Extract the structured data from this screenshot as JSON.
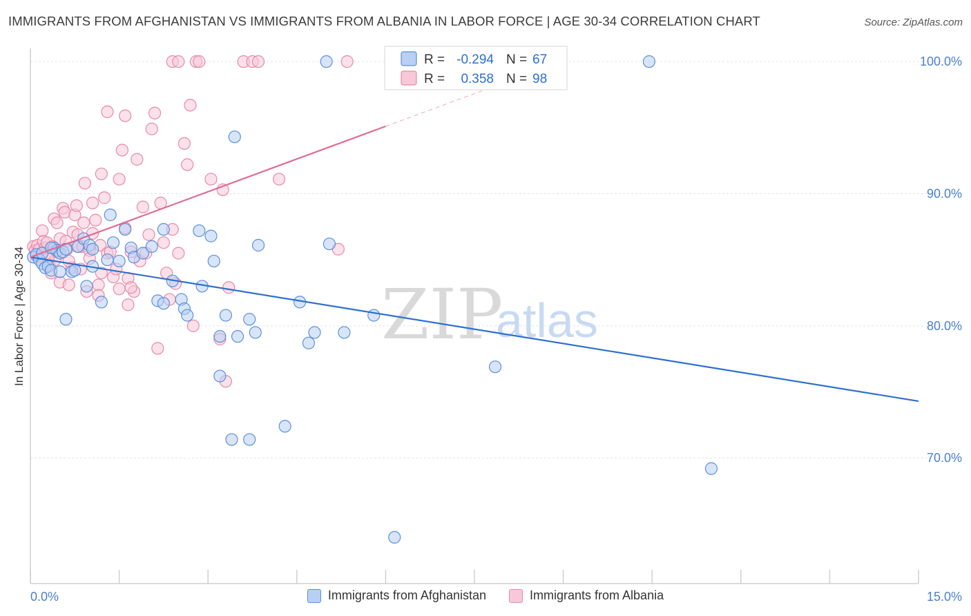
{
  "header": {
    "title": "IMMIGRANTS FROM AFGHANISTAN VS IMMIGRANTS FROM ALBANIA IN LABOR FORCE | AGE 30-34 CORRELATION CHART",
    "source": "Source: ZipAtlas.com"
  },
  "watermark": {
    "zip": "ZIP",
    "atlas": "atlas"
  },
  "legend": {
    "r_label": "R =",
    "n_label": "N =",
    "afghanistan": {
      "r": "-0.294",
      "n": "67"
    },
    "albania": {
      "r": "0.358",
      "n": "98"
    }
  },
  "bottom_legend": {
    "afghanistan": "Immigrants from Afghanistan",
    "albania": "Immigrants from Albania"
  },
  "colors": {
    "blue_stroke": "#5b8fd8",
    "blue_fill": "#b8d0f4",
    "blue_line": "#2c6fd0",
    "pink_stroke": "#e58aa8",
    "pink_fill": "#f8c8d8",
    "pink_line": "#e06a94"
  },
  "chart_data": {
    "type": "scatter",
    "title": "IMMIGRANTS FROM AFGHANISTAN VS IMMIGRANTS FROM ALBANIA IN LABOR FORCE | AGE 30-34 CORRELATION CHART",
    "xlabel": "",
    "ylabel": "In Labor Force | Age 30-34",
    "xlim": [
      0,
      15
    ],
    "ylim": [
      60.5,
      101
    ],
    "x_tick_labels": [
      "0.0%",
      "15.0%"
    ],
    "y_ticks": [
      70,
      80,
      90,
      100
    ],
    "y_tick_labels": [
      "70.0%",
      "80.0%",
      "90.0%",
      "100.0%"
    ],
    "grid": true,
    "series": [
      {
        "name": "Immigrants from Afghanistan",
        "color": "blue",
        "points": [
          [
            0.05,
            85.2
          ],
          [
            0.1,
            85.4
          ],
          [
            0.15,
            85.0
          ],
          [
            0.2,
            84.7
          ],
          [
            0.25,
            84.4
          ],
          [
            0.3,
            84.5
          ],
          [
            0.35,
            84.2
          ],
          [
            0.4,
            85.9
          ],
          [
            0.45,
            85.7
          ],
          [
            0.5,
            85.5
          ],
          [
            0.55,
            85.6
          ],
          [
            0.7,
            84.1
          ],
          [
            0.75,
            84.2
          ],
          [
            0.8,
            86.0
          ],
          [
            0.9,
            86.6
          ],
          [
            0.95,
            83.0
          ],
          [
            1.0,
            86.1
          ],
          [
            1.05,
            84.5
          ],
          [
            1.2,
            81.8
          ],
          [
            1.3,
            85.0
          ],
          [
            1.35,
            88.4
          ],
          [
            1.4,
            86.3
          ],
          [
            1.5,
            84.9
          ],
          [
            1.6,
            87.3
          ],
          [
            1.7,
            85.9
          ],
          [
            1.75,
            85.2
          ],
          [
            1.9,
            85.5
          ],
          [
            2.05,
            86.0
          ],
          [
            2.15,
            81.9
          ],
          [
            2.25,
            87.3
          ],
          [
            2.25,
            81.7
          ],
          [
            2.4,
            83.4
          ],
          [
            2.55,
            82.0
          ],
          [
            2.6,
            81.3
          ],
          [
            2.65,
            80.8
          ],
          [
            2.85,
            87.2
          ],
          [
            2.9,
            83.0
          ],
          [
            3.05,
            86.8
          ],
          [
            3.1,
            84.9
          ],
          [
            3.2,
            79.2
          ],
          [
            3.2,
            76.2
          ],
          [
            3.3,
            80.8
          ],
          [
            3.45,
            94.3
          ],
          [
            3.5,
            79.2
          ],
          [
            3.7,
            80.5
          ],
          [
            3.8,
            79.5
          ],
          [
            3.85,
            86.1
          ],
          [
            4.3,
            72.4
          ],
          [
            4.55,
            81.8
          ],
          [
            4.7,
            78.7
          ],
          [
            4.8,
            79.5
          ],
          [
            5.05,
            86.2
          ],
          [
            5.3,
            79.5
          ],
          [
            5.8,
            80.8
          ],
          [
            6.15,
            64.0
          ],
          [
            7.85,
            76.9
          ],
          [
            10.45,
            100.0
          ],
          [
            11.5,
            69.2
          ],
          [
            0.6,
            80.5
          ],
          [
            3.4,
            71.4
          ],
          [
            3.7,
            71.4
          ],
          [
            0.5,
            84.1
          ],
          [
            1.05,
            85.8
          ],
          [
            0.2,
            85.5
          ],
          [
            0.35,
            85.9
          ],
          [
            0.6,
            85.8
          ],
          [
            5.0,
            100.0
          ]
        ]
      },
      {
        "name": "Immigrants from Albania",
        "color": "pink",
        "points": [
          [
            0.05,
            86.0
          ],
          [
            0.08,
            85.7
          ],
          [
            0.1,
            85.3
          ],
          [
            0.12,
            86.1
          ],
          [
            0.15,
            85.8
          ],
          [
            0.18,
            85.2
          ],
          [
            0.2,
            87.2
          ],
          [
            0.22,
            86.4
          ],
          [
            0.25,
            85.9
          ],
          [
            0.28,
            86.3
          ],
          [
            0.3,
            85.5
          ],
          [
            0.32,
            84.6
          ],
          [
            0.35,
            84.0
          ],
          [
            0.38,
            86.0
          ],
          [
            0.4,
            88.1
          ],
          [
            0.42,
            85.0
          ],
          [
            0.45,
            87.8
          ],
          [
            0.5,
            83.3
          ],
          [
            0.5,
            86.6
          ],
          [
            0.55,
            88.9
          ],
          [
            0.58,
            88.6
          ],
          [
            0.6,
            86.4
          ],
          [
            0.62,
            85.8
          ],
          [
            0.65,
            83.1
          ],
          [
            0.7,
            84.4
          ],
          [
            0.72,
            87.1
          ],
          [
            0.75,
            88.4
          ],
          [
            0.78,
            89.1
          ],
          [
            0.8,
            86.9
          ],
          [
            0.82,
            86.0
          ],
          [
            0.85,
            84.3
          ],
          [
            0.88,
            86.0
          ],
          [
            0.9,
            87.8
          ],
          [
            0.92,
            90.8
          ],
          [
            0.95,
            82.6
          ],
          [
            1.0,
            85.7
          ],
          [
            1.05,
            87.0
          ],
          [
            1.05,
            89.3
          ],
          [
            1.1,
            88.0
          ],
          [
            1.15,
            83.1
          ],
          [
            1.18,
            86.1
          ],
          [
            1.2,
            91.5
          ],
          [
            1.2,
            84.0
          ],
          [
            1.25,
            89.7
          ],
          [
            1.3,
            96.2
          ],
          [
            1.3,
            85.5
          ],
          [
            1.35,
            85.6
          ],
          [
            1.4,
            83.7
          ],
          [
            1.45,
            84.3
          ],
          [
            1.5,
            91.1
          ],
          [
            1.5,
            82.8
          ],
          [
            1.55,
            93.3
          ],
          [
            1.6,
            87.4
          ],
          [
            1.65,
            83.6
          ],
          [
            1.65,
            81.6
          ],
          [
            1.7,
            85.6
          ],
          [
            1.75,
            82.6
          ],
          [
            1.8,
            92.6
          ],
          [
            1.85,
            84.9
          ],
          [
            1.9,
            89.0
          ],
          [
            1.95,
            85.5
          ],
          [
            2.0,
            86.9
          ],
          [
            2.05,
            94.9
          ],
          [
            2.1,
            96.1
          ],
          [
            2.15,
            78.3
          ],
          [
            2.2,
            89.3
          ],
          [
            2.25,
            86.3
          ],
          [
            2.3,
            84.0
          ],
          [
            2.35,
            82.0
          ],
          [
            2.4,
            87.3
          ],
          [
            2.45,
            83.2
          ],
          [
            2.5,
            85.5
          ],
          [
            2.6,
            93.8
          ],
          [
            2.65,
            92.2
          ],
          [
            2.7,
            96.7
          ],
          [
            2.75,
            80.0
          ],
          [
            2.8,
            100.0
          ],
          [
            2.85,
            100.0
          ],
          [
            3.05,
            91.1
          ],
          [
            3.2,
            79.0
          ],
          [
            3.25,
            90.3
          ],
          [
            3.3,
            75.8
          ],
          [
            3.35,
            82.9
          ],
          [
            3.6,
            100.0
          ],
          [
            3.75,
            100.0
          ],
          [
            3.85,
            100.0
          ],
          [
            4.2,
            91.1
          ],
          [
            5.2,
            85.8
          ],
          [
            5.35,
            100.0
          ],
          [
            2.4,
            100.0
          ],
          [
            2.5,
            100.0
          ],
          [
            1.6,
            95.9
          ],
          [
            1.0,
            85.1
          ],
          [
            0.45,
            85.6
          ],
          [
            0.65,
            84.9
          ],
          [
            1.15,
            82.3
          ],
          [
            1.7,
            82.9
          ],
          [
            0.3,
            85.1
          ]
        ]
      }
    ],
    "trendlines": [
      {
        "series": "Immigrants from Afghanistan",
        "x": [
          0,
          15
        ],
        "y": [
          85.2,
          74.3
        ],
        "style": "solid"
      },
      {
        "series": "Immigrants from Albania",
        "x": [
          0,
          6
        ],
        "y": [
          85.2,
          95.1
        ],
        "style": "solid"
      },
      {
        "series": "Immigrants from Albania",
        "x": [
          6,
          8
        ],
        "y": [
          95.1,
          98.4
        ],
        "style": "dashed"
      }
    ]
  }
}
